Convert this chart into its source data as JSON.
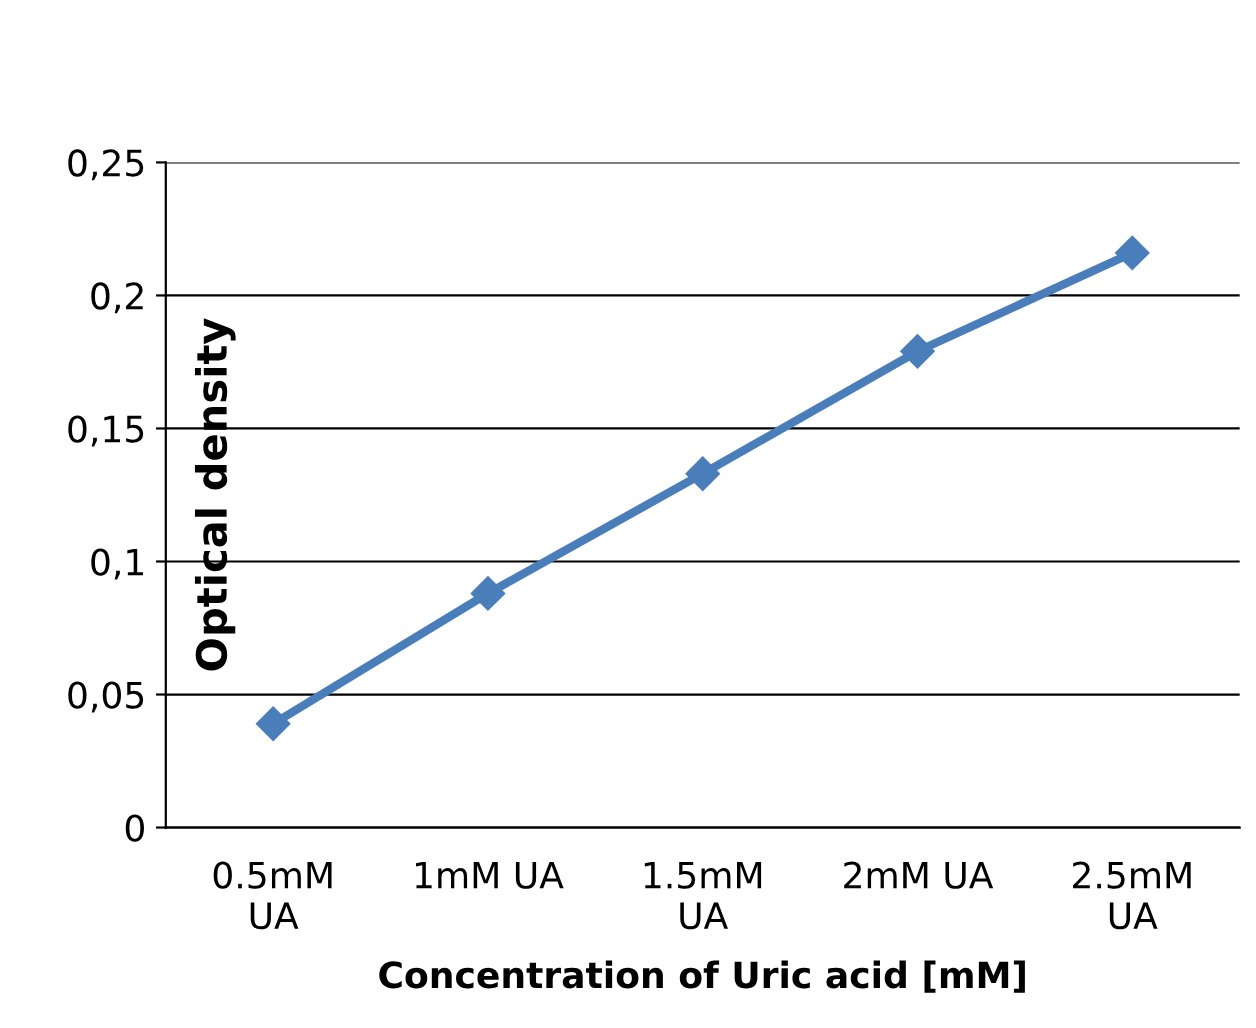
{
  "chart_data": {
    "type": "line",
    "xlabel": "Concentration of Uric acid [mM]",
    "ylabel": "Optical density",
    "categories": [
      "0.5mM\nUA",
      "1mM UA",
      "1.5mM\nUA",
      "2mM UA",
      "2.5mM\nUA"
    ],
    "series": [
      {
        "color": "#4a7ebb",
        "values": [
          0.039,
          0.088,
          0.133,
          0.179,
          0.216
        ]
      }
    ],
    "ylim": [
      0,
      0.25
    ],
    "yticks": [
      0,
      {
        "value": 0.05,
        "label": "0,05"
      },
      {
        "value": 0.1,
        "label": "0,1"
      },
      {
        "value": 0.15,
        "label": "0,15"
      },
      {
        "value": 0.2,
        "label": "0,2"
      },
      {
        "value": 0.25,
        "label": "0,25"
      }
    ],
    "grid": "y",
    "marker": "diamond",
    "line_style": "solid",
    "legend": false
  }
}
